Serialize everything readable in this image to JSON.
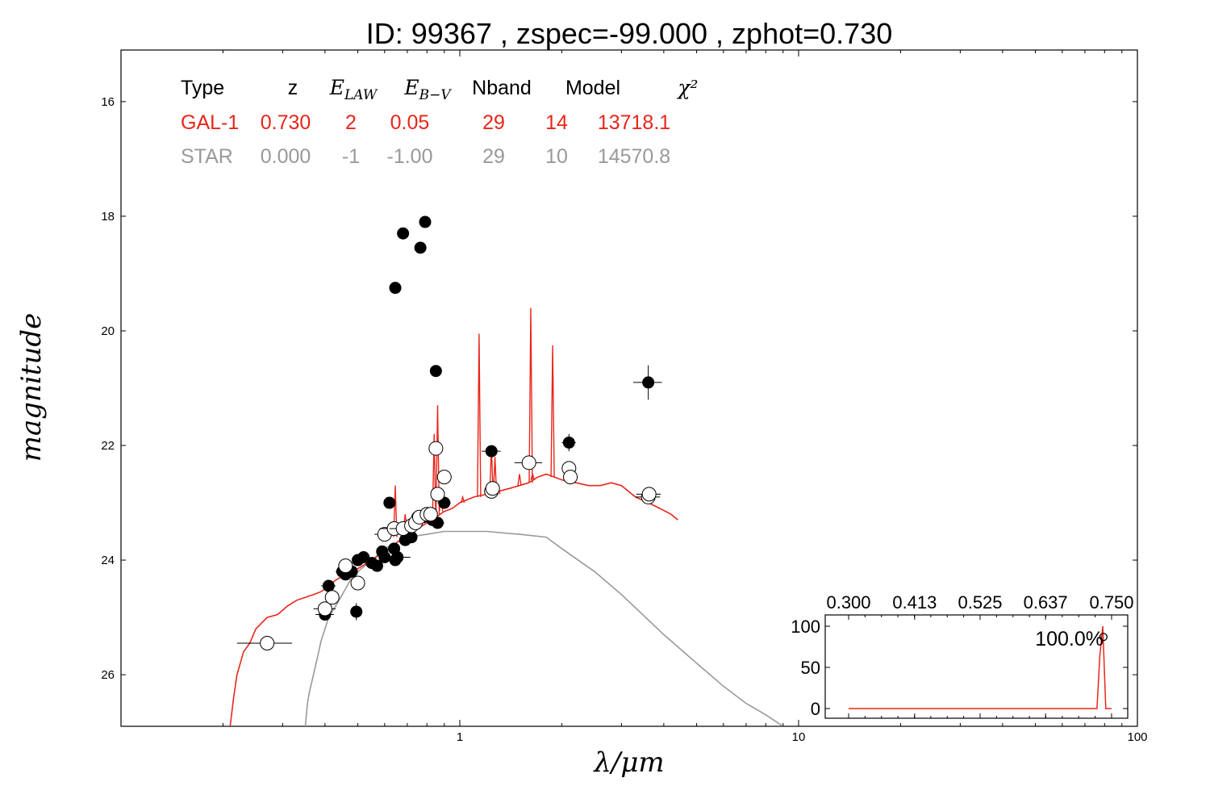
{
  "title": "ID:  99367 , zspec=-99.000 , zphot=0.730",
  "chart_data": {
    "type": "scatter",
    "title": "ID:  99367 , zspec=-99.000 , zphot=0.730",
    "xlabel": "λ/μm",
    "ylabel": "magnitude",
    "xscale": "log",
    "xlim": [
      0.1,
      100
    ],
    "ylim": [
      26.9,
      15.1
    ],
    "y_inverted": true,
    "xticks": [
      1,
      10,
      100
    ],
    "xtick_labels": [
      "1",
      "10",
      "100"
    ],
    "yticks": [
      16,
      18,
      20,
      22,
      24,
      26
    ],
    "ytick_labels": [
      "16",
      "18",
      "20",
      "22",
      "24",
      "26"
    ],
    "grid": false,
    "colors": {
      "galaxy": "#e8261b",
      "star": "#999999",
      "points": "#000000"
    },
    "table": {
      "headers": [
        "Type",
        "z",
        "E_LAW",
        "E_B-V",
        "Nband",
        "Model",
        "χ²"
      ],
      "header_sub": {
        "E_LAW": "LAW",
        "E_B-V": "B−V"
      },
      "rows": [
        {
          "name": "galaxy",
          "values": [
            "GAL-1",
            "0.730",
            "2",
            "0.05",
            "29",
            "14",
            "13718.1"
          ]
        },
        {
          "name": "star",
          "values": [
            "STAR",
            "0.000",
            "-1",
            "-1.00",
            "29",
            "10",
            "14570.8"
          ]
        }
      ]
    },
    "series": [
      {
        "kind": "model-line",
        "color": "#e8261b",
        "x": [
          0.21,
          0.215,
          0.22,
          0.23,
          0.24,
          0.25,
          0.27,
          0.29,
          0.31,
          0.33,
          0.35,
          0.37,
          0.39,
          0.41,
          0.43,
          0.46,
          0.5,
          0.55,
          0.6,
          0.65,
          0.7,
          0.75,
          0.8,
          0.85,
          0.9,
          0.95,
          1.0,
          1.1,
          1.2,
          1.3,
          1.4,
          1.5,
          1.6,
          1.7,
          1.8,
          1.9,
          2.0,
          2.2,
          2.4,
          2.6,
          2.8,
          3.0,
          3.3,
          3.6,
          3.9,
          4.2,
          4.4
        ],
        "y": [
          26.9,
          26.4,
          26.0,
          25.6,
          25.45,
          25.2,
          25.0,
          24.95,
          24.8,
          24.7,
          24.65,
          24.6,
          24.55,
          24.45,
          24.35,
          24.25,
          24.15,
          24.0,
          23.85,
          23.7,
          23.55,
          23.45,
          23.35,
          23.25,
          23.15,
          23.1,
          23.0,
          22.9,
          22.85,
          22.8,
          22.75,
          22.7,
          22.65,
          22.55,
          22.5,
          22.55,
          22.6,
          22.65,
          22.7,
          22.7,
          22.65,
          22.7,
          22.9,
          23.0,
          23.1,
          23.2,
          23.3
        ]
      },
      {
        "kind": "emission-lines",
        "color": "#e8261b",
        "x": [
          0.645,
          0.665,
          0.69,
          0.71,
          0.84,
          0.86,
          0.88,
          1.02,
          1.14,
          1.24,
          1.27,
          1.3,
          1.5,
          1.62,
          1.64,
          1.88
        ],
        "y": [
          22.7,
          23.4,
          23.2,
          23.35,
          21.8,
          21.3,
          22.8,
          22.9,
          20.05,
          22.0,
          22.2,
          22.75,
          22.5,
          19.6,
          22.5,
          20.25
        ],
        "base": [
          23.6,
          23.5,
          23.45,
          23.4,
          23.25,
          23.2,
          23.15,
          23.0,
          22.9,
          22.85,
          22.85,
          22.85,
          22.7,
          22.65,
          22.6,
          22.55
        ]
      },
      {
        "kind": "star-line",
        "color": "#999999",
        "x": [
          0.35,
          0.355,
          0.36,
          0.37,
          0.38,
          0.39,
          0.4,
          0.41,
          0.42,
          0.44,
          0.46,
          0.48,
          0.5,
          0.55,
          0.6,
          0.65,
          0.7,
          0.8,
          0.9,
          1.0,
          1.2,
          1.5,
          1.8,
          2.0,
          2.5,
          3.0,
          4.0,
          5.0,
          6.0,
          7.0,
          8.0,
          9.0
        ],
        "y": [
          26.9,
          26.5,
          26.3,
          26.0,
          25.7,
          25.4,
          25.2,
          25.0,
          24.9,
          24.7,
          24.5,
          24.3,
          24.2,
          24.0,
          23.8,
          23.7,
          23.6,
          23.55,
          23.5,
          23.5,
          23.5,
          23.55,
          23.6,
          23.8,
          24.2,
          24.6,
          25.3,
          25.8,
          26.2,
          26.5,
          26.7,
          26.9
        ]
      },
      {
        "kind": "observed-filled",
        "x": [
          0.4,
          0.41,
          0.45,
          0.46,
          0.47,
          0.48,
          0.495,
          0.5,
          0.52,
          0.55,
          0.57,
          0.59,
          0.6,
          0.62,
          0.64,
          0.645,
          0.655,
          0.69,
          0.72,
          0.75,
          0.78,
          0.83,
          0.86,
          0.9,
          0.645,
          0.68,
          0.765,
          0.79,
          0.85,
          1.24,
          2.1,
          3.6
        ],
        "y": [
          24.95,
          24.45,
          24.2,
          24.25,
          24.2,
          24.2,
          24.9,
          24.0,
          23.95,
          24.05,
          24.1,
          23.85,
          23.95,
          23.0,
          23.8,
          24.0,
          23.95,
          23.65,
          23.6,
          23.25,
          23.25,
          23.3,
          23.35,
          23.0,
          19.25,
          18.3,
          18.55,
          18.1,
          20.7,
          22.1,
          21.95,
          20.9
        ],
        "yerr": [
          0.05,
          0.05,
          0.04,
          0.04,
          0.04,
          0.04,
          0.15,
          0.04,
          0.04,
          0.04,
          0.04,
          0.04,
          0.04,
          0.04,
          0.04,
          0.04,
          0.04,
          0.04,
          0.04,
          0.04,
          0.04,
          0.04,
          0.04,
          0.04,
          0.03,
          0.03,
          0.03,
          0.03,
          0.05,
          0.08,
          0.15,
          0.3
        ],
        "xerr": [
          0.025,
          0.02,
          0.02,
          0.02,
          0.02,
          0.02,
          0.02,
          0.02,
          0.02,
          0.02,
          0.02,
          0.02,
          0.02,
          0.02,
          0.02,
          0.02,
          0.06,
          0.02,
          0.02,
          0.02,
          0.02,
          0.02,
          0.04,
          0.04,
          0.01,
          0.01,
          0.01,
          0.01,
          0.02,
          0.08,
          0.1,
          0.35
        ]
      },
      {
        "kind": "model-open",
        "x": [
          0.27,
          0.4,
          0.42,
          0.46,
          0.5,
          0.6,
          0.64,
          0.68,
          0.72,
          0.74,
          0.76,
          0.8,
          0.82,
          0.85,
          0.86,
          0.9,
          1.24,
          1.25,
          1.6,
          2.1,
          2.12,
          3.6,
          3.62
        ],
        "y": [
          25.45,
          24.85,
          24.65,
          24.1,
          24.4,
          23.55,
          23.45,
          23.45,
          23.4,
          23.35,
          23.25,
          23.2,
          23.2,
          22.05,
          22.85,
          22.55,
          22.8,
          22.75,
          22.3,
          22.4,
          22.55,
          22.9,
          22.85
        ],
        "xerr": [
          0.05,
          0.03,
          0.02,
          0.02,
          0.02,
          0.04,
          0.06,
          0.06,
          0.02,
          0.02,
          0.02,
          0.02,
          0.02,
          0.02,
          0.02,
          0.04,
          0.06,
          0.06,
          0.15,
          0.1,
          0.1,
          0.3,
          0.3
        ]
      }
    ],
    "inset": {
      "type": "line",
      "xlim": [
        0.3,
        0.75
      ],
      "xticks": [
        0.3,
        0.413,
        0.525,
        0.637,
        0.75
      ],
      "xtick_labels": [
        "0.300",
        "0.413",
        "0.525",
        "0.637",
        "0.750"
      ],
      "yticks": [
        0,
        50,
        100
      ],
      "ytick_labels": [
        "0",
        "50",
        "100"
      ],
      "label": "100.0%",
      "color": "#e8261b",
      "x": [
        0.3,
        0.725,
        0.73,
        0.735,
        0.74,
        0.75
      ],
      "y": [
        0,
        0,
        65,
        100,
        0,
        0
      ]
    }
  }
}
